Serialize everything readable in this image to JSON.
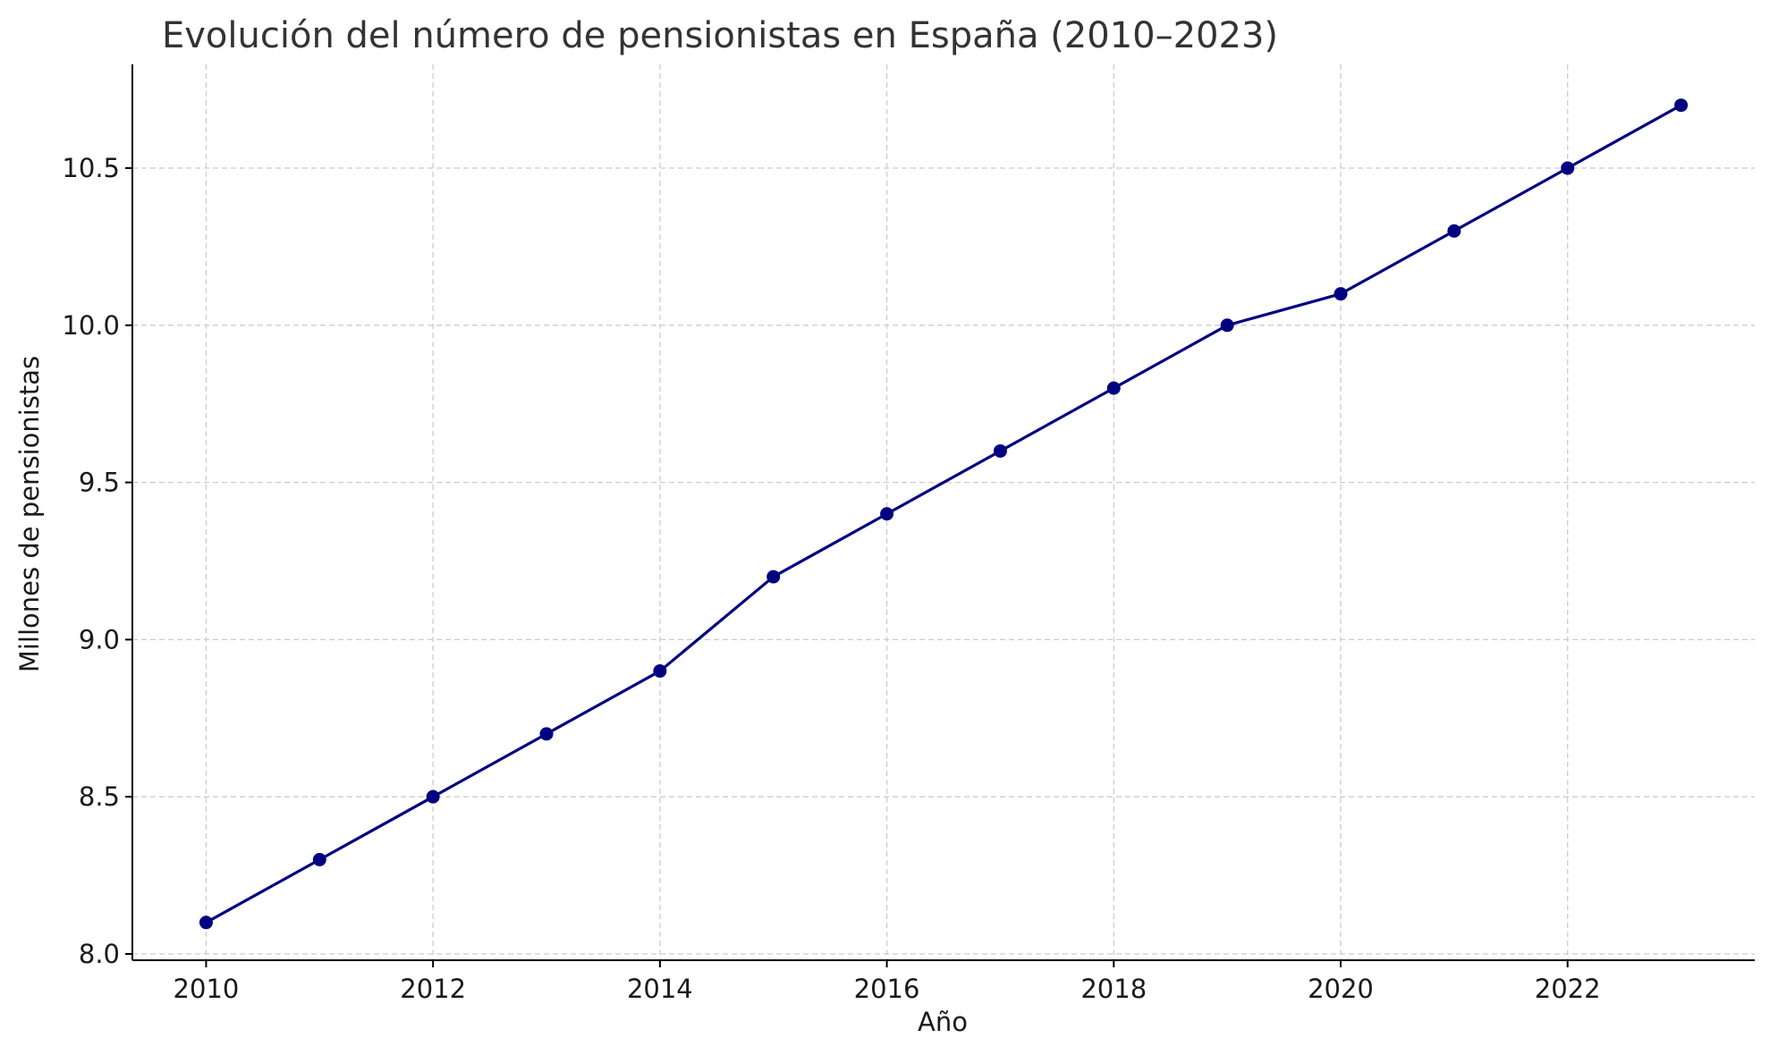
{
  "chart_data": {
    "type": "line",
    "title": "Evolución del número de pensionistas en España (2010–2023)",
    "xlabel": "Año",
    "ylabel": "Millones de pensionistas",
    "xlim": [
      2009.35,
      2023.65
    ],
    "ylim": [
      7.98,
      10.83
    ],
    "x_ticks": [
      2010,
      2012,
      2014,
      2016,
      2018,
      2020,
      2022
    ],
    "y_ticks": [
      8.0,
      8.5,
      9.0,
      9.5,
      10.0,
      10.5
    ],
    "y_tick_labels": [
      "8.0",
      "8.5",
      "9.0",
      "9.5",
      "10.0",
      "10.5"
    ],
    "grid": true,
    "series": [
      {
        "color": "#000080",
        "marker": "circle",
        "x": [
          2010,
          2011,
          2012,
          2013,
          2014,
          2015,
          2016,
          2017,
          2018,
          2019,
          2020,
          2021,
          2022,
          2023
        ],
        "values": [
          8.1,
          8.3,
          8.5,
          8.7,
          8.9,
          9.2,
          9.4,
          9.6,
          9.8,
          10.0,
          10.1,
          10.3,
          10.5,
          10.7
        ]
      }
    ]
  }
}
